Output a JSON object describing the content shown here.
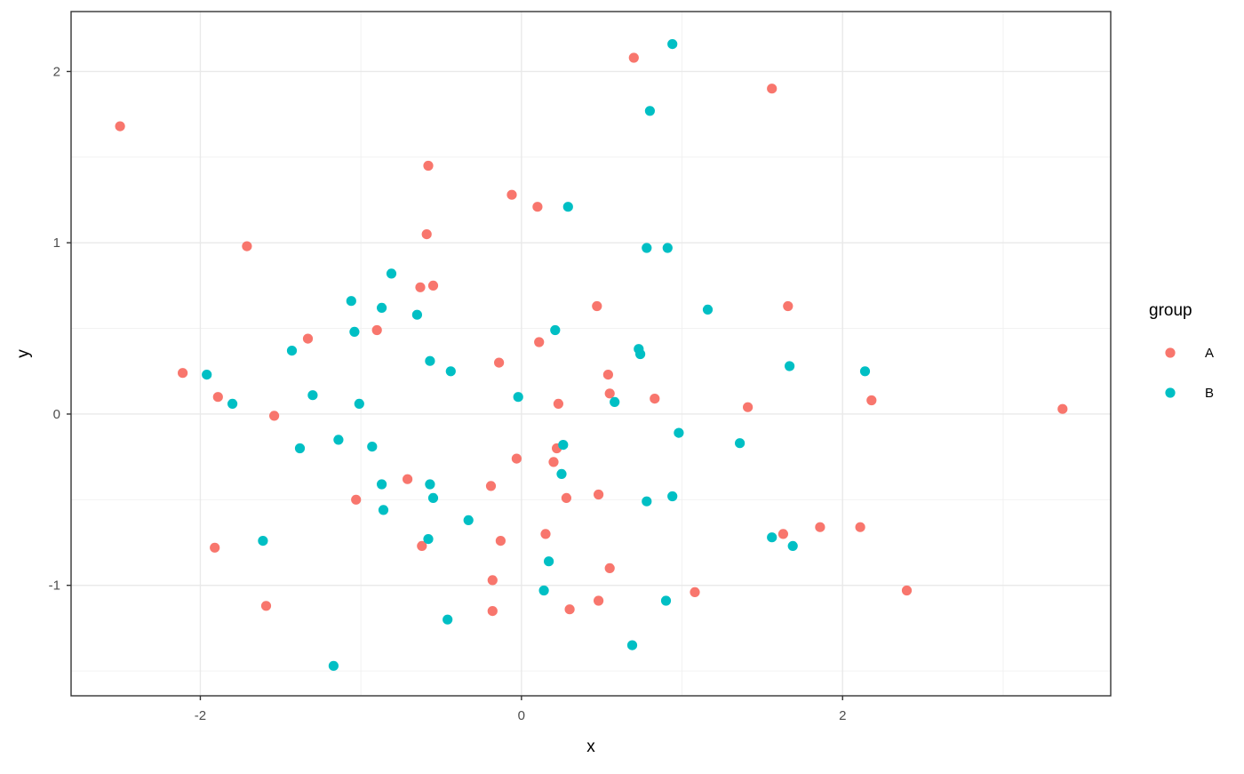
{
  "chart_data": {
    "type": "scatter",
    "title": "",
    "xlabel": "x",
    "ylabel": "y",
    "legend_title": "group",
    "legend_position": "right",
    "grid": true,
    "xlim": [
      -2.805,
      3.67
    ],
    "ylim": [
      -1.645,
      2.35
    ],
    "x_ticks": [
      -2,
      0,
      2
    ],
    "y_ticks": [
      -1,
      0,
      1,
      2
    ],
    "x_minor_ticks": [
      -1,
      1,
      3
    ],
    "y_minor_ticks": [
      -1.5,
      -0.5,
      0.5,
      1.5
    ],
    "series": [
      {
        "name": "A",
        "color": "#F8766D",
        "points": [
          [
            -2.5,
            1.68
          ],
          [
            -1.71,
            0.98
          ],
          [
            0.7,
            2.08
          ],
          [
            1.56,
            1.9
          ],
          [
            -0.58,
            1.45
          ],
          [
            -0.06,
            1.28
          ],
          [
            0.1,
            1.21
          ],
          [
            -0.59,
            1.05
          ],
          [
            -0.63,
            0.74
          ],
          [
            -0.55,
            0.75
          ],
          [
            0.47,
            0.63
          ],
          [
            1.66,
            0.63
          ],
          [
            -0.9,
            0.49
          ],
          [
            -1.33,
            0.44
          ],
          [
            0.11,
            0.42
          ],
          [
            -0.14,
            0.3
          ],
          [
            -2.11,
            0.24
          ],
          [
            0.54,
            0.23
          ],
          [
            -1.89,
            0.1
          ],
          [
            0.55,
            0.12
          ],
          [
            0.83,
            0.09
          ],
          [
            2.18,
            0.08
          ],
          [
            0.23,
            0.06
          ],
          [
            1.41,
            0.04
          ],
          [
            3.37,
            0.03
          ],
          [
            -1.54,
            -0.01
          ],
          [
            0.22,
            -0.2
          ],
          [
            -0.03,
            -0.26
          ],
          [
            0.2,
            -0.28
          ],
          [
            -0.71,
            -0.38
          ],
          [
            -0.19,
            -0.42
          ],
          [
            0.28,
            -0.49
          ],
          [
            0.48,
            -0.47
          ],
          [
            -1.03,
            -0.5
          ],
          [
            1.63,
            -0.7
          ],
          [
            1.86,
            -0.66
          ],
          [
            2.11,
            -0.66
          ],
          [
            0.15,
            -0.7
          ],
          [
            -0.13,
            -0.74
          ],
          [
            -1.91,
            -0.78
          ],
          [
            -0.62,
            -0.77
          ],
          [
            0.55,
            -0.9
          ],
          [
            -0.18,
            -0.97
          ],
          [
            1.08,
            -1.04
          ],
          [
            2.4,
            -1.03
          ],
          [
            0.48,
            -1.09
          ],
          [
            -1.59,
            -1.12
          ],
          [
            0.3,
            -1.14
          ],
          [
            -0.18,
            -1.15
          ]
        ]
      },
      {
        "name": "B",
        "color": "#00BFC4",
        "points": [
          [
            0.94,
            2.16
          ],
          [
            0.8,
            1.77
          ],
          [
            0.29,
            1.21
          ],
          [
            0.78,
            0.97
          ],
          [
            0.91,
            0.97
          ],
          [
            -0.81,
            0.82
          ],
          [
            -1.06,
            0.66
          ],
          [
            -0.87,
            0.62
          ],
          [
            1.16,
            0.61
          ],
          [
            -1.04,
            0.48
          ],
          [
            0.21,
            0.49
          ],
          [
            -0.65,
            0.58
          ],
          [
            -1.43,
            0.37
          ],
          [
            0.73,
            0.38
          ],
          [
            0.74,
            0.35
          ],
          [
            -0.57,
            0.31
          ],
          [
            1.67,
            0.28
          ],
          [
            -0.44,
            0.25
          ],
          [
            2.14,
            0.25
          ],
          [
            -1.96,
            0.23
          ],
          [
            -1.3,
            0.11
          ],
          [
            -0.02,
            0.1
          ],
          [
            0.58,
            0.07
          ],
          [
            -1.8,
            0.06
          ],
          [
            -1.01,
            0.06
          ],
          [
            -1.14,
            -0.15
          ],
          [
            -0.93,
            -0.19
          ],
          [
            -1.38,
            -0.2
          ],
          [
            0.98,
            -0.11
          ],
          [
            1.36,
            -0.17
          ],
          [
            0.26,
            -0.18
          ],
          [
            0.25,
            -0.35
          ],
          [
            -0.87,
            -0.41
          ],
          [
            -0.57,
            -0.41
          ],
          [
            -0.55,
            -0.49
          ],
          [
            0.78,
            -0.51
          ],
          [
            0.94,
            -0.48
          ],
          [
            -0.86,
            -0.56
          ],
          [
            -0.33,
            -0.62
          ],
          [
            1.56,
            -0.72
          ],
          [
            -1.61,
            -0.74
          ],
          [
            -0.58,
            -0.73
          ],
          [
            1.69,
            -0.77
          ],
          [
            0.17,
            -0.86
          ],
          [
            0.14,
            -1.03
          ],
          [
            0.9,
            -1.09
          ],
          [
            -0.46,
            -1.2
          ],
          [
            0.69,
            -1.35
          ],
          [
            -1.17,
            -1.47
          ]
        ]
      }
    ]
  },
  "style": {
    "background": "#FFFFFF",
    "panel_background": "#FFFFFF",
    "panel_border": "#333333",
    "grid_major": "#E9E9E9",
    "grid_minor": "#F0F0F0",
    "tick_color": "#333333",
    "tick_label_color": "#4D4D4D",
    "text_color": "#000000",
    "series_a_color": "#F8766D",
    "series_b_color": "#00BFC4"
  }
}
